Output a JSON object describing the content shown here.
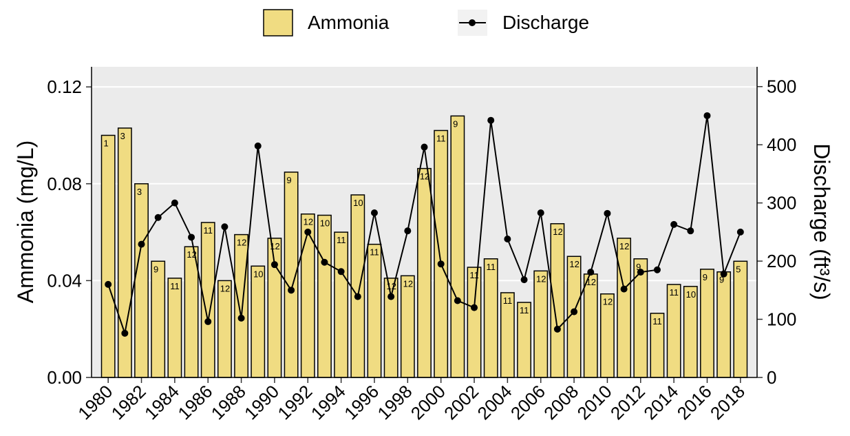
{
  "chart_data": {
    "type": "bar-line",
    "y_label": "Ammonia (mg/L)",
    "y2_label": "Discharge (ft³/s)",
    "x": [
      1980,
      1981,
      1982,
      1983,
      1984,
      1985,
      1986,
      1987,
      1988,
      1989,
      1990,
      1991,
      1992,
      1993,
      1994,
      1995,
      1996,
      1997,
      1998,
      1999,
      2000,
      2001,
      2002,
      2003,
      2004,
      2005,
      2006,
      2007,
      2008,
      2009,
      2010,
      2011,
      2012,
      2013,
      2014,
      2015,
      2016,
      2017,
      2018
    ],
    "xlim": [
      1979,
      2019
    ],
    "xticks": [
      1980,
      1982,
      1984,
      1986,
      1988,
      1990,
      1992,
      1994,
      1996,
      1998,
      2000,
      2002,
      2004,
      2006,
      2008,
      2010,
      2012,
      2014,
      2016,
      2018
    ],
    "ylim": [
      0,
      0.1283
    ],
    "yticks": [
      {
        "value": 0,
        "label": "0.00"
      },
      {
        "value": 0.04,
        "label": "0.04"
      },
      {
        "value": 0.08,
        "label": "0.08"
      },
      {
        "value": 0.12,
        "label": "0.12"
      }
    ],
    "y2lim": [
      0,
      534
    ],
    "y2ticks": [
      0,
      100,
      200,
      300,
      400,
      500
    ],
    "grid": true,
    "series": [
      {
        "name": "Ammonia",
        "kind": "bar",
        "color": "#f0dc82",
        "values": [
          0.1,
          0.103,
          0.08,
          0.048,
          0.041,
          0.054,
          0.064,
          0.04,
          0.059,
          0.046,
          0.0575,
          0.0848,
          0.0675,
          0.067,
          0.06,
          0.0754,
          0.055,
          0.041,
          0.042,
          0.0863,
          0.102,
          0.108,
          0.0455,
          0.049,
          0.035,
          0.031,
          0.044,
          0.0635,
          0.05,
          0.0427,
          0.0345,
          0.0575,
          0.049,
          0.0265,
          0.0384,
          0.0376,
          0.0447,
          0.0436,
          0.048
        ],
        "bar_labels": [
          "1",
          "3",
          "3",
          "9",
          "11",
          "12",
          "11",
          "12",
          "12",
          "10",
          "12",
          "9",
          "12",
          "10",
          "11",
          "10",
          "11",
          "12",
          "12",
          "12",
          "11",
          "9",
          "11",
          "11",
          "11",
          "11",
          "12",
          "12",
          "12",
          "12",
          "12",
          "12",
          "9",
          "11",
          "11",
          "10",
          "9",
          "9",
          "5"
        ]
      },
      {
        "name": "Discharge",
        "kind": "line",
        "color": "#000000",
        "axis": "y2",
        "values": [
          160,
          76,
          229,
          275,
          300,
          241,
          96,
          259,
          102,
          398,
          194,
          150,
          250,
          198,
          182,
          139,
          283,
          139,
          252,
          396,
          195,
          132,
          120,
          442,
          238,
          168,
          283,
          83,
          113,
          181,
          282,
          152,
          181,
          185,
          263,
          252,
          450,
          178,
          250
        ]
      }
    ]
  }
}
